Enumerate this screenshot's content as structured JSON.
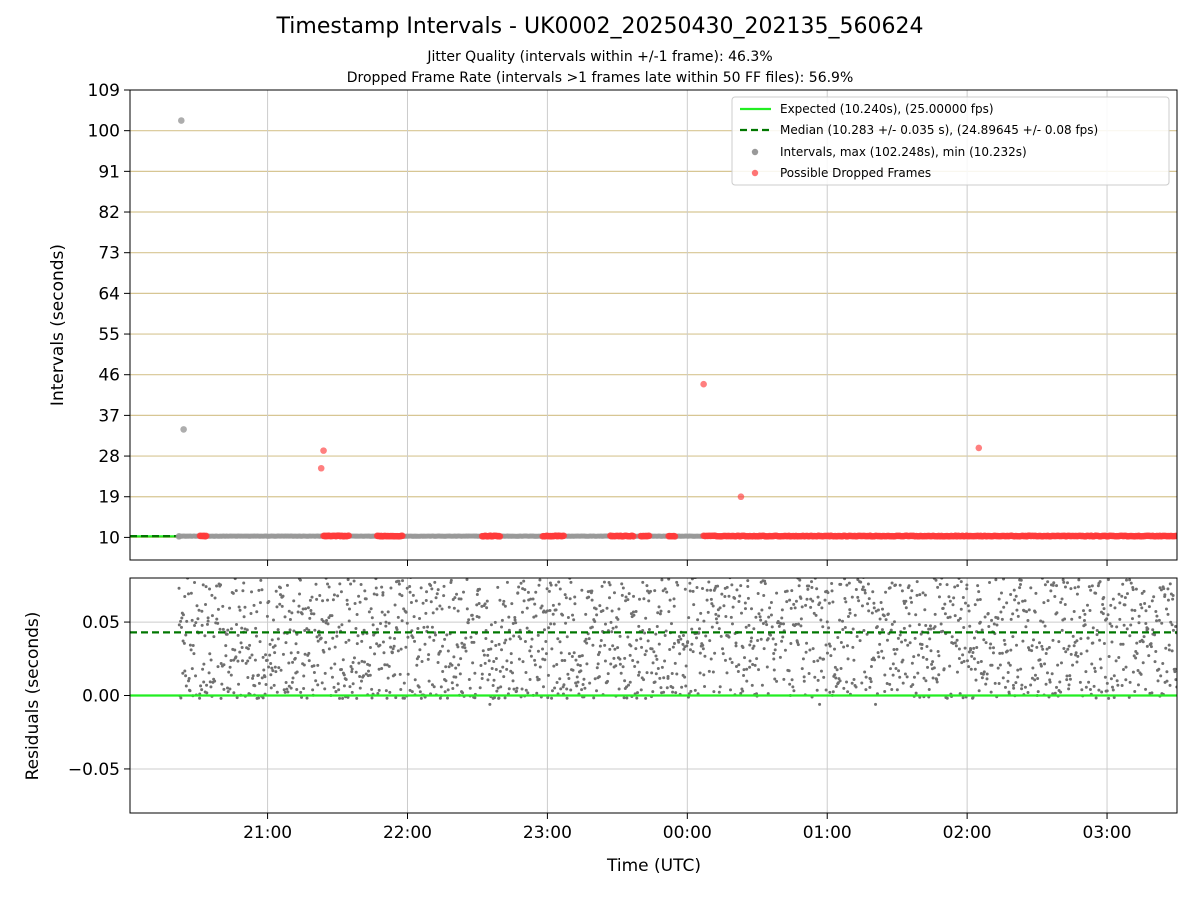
{
  "figure": {
    "title": "Timestamp Intervals - UK0002_20250430_202135_560624",
    "subtitle_1": "Jitter Quality (intervals within +/-1 frame): 46.3%",
    "subtitle_2": "Dropped Frame Rate (intervals >1 frames late within 50 FF files): 56.9%"
  },
  "colors": {
    "expected": "#22ee22",
    "median": "#007700",
    "intervals": "#999999",
    "dropped": "#ff3b3b",
    "residual_points": "#707070",
    "gridline_horizontal": "#d7c693",
    "gridline_vertical": "#cccccc"
  },
  "chart_data": [
    {
      "type": "scatter",
      "panel": "intervals",
      "ylabel": "Intervals (seconds)",
      "ylim": [
        5,
        109
      ],
      "yticks": [
        10,
        19,
        28,
        37,
        46,
        55,
        64,
        73,
        82,
        91,
        100,
        109
      ],
      "xlim": [
        "20:01",
        "03:30"
      ],
      "xticks": [
        "21:00",
        "22:00",
        "23:00",
        "00:00",
        "01:00",
        "02:00",
        "03:00"
      ],
      "legend_position": "top-right",
      "series": [
        {
          "name": "Expected (10.240s), (25.00000 fps)",
          "kind": "line",
          "style": "solid",
          "y": 10.24
        },
        {
          "name": "Median (10.283 +/- 0.035 s), (24.89645 +/- 0.08 fps)",
          "kind": "line",
          "style": "dashed",
          "y": 10.283
        },
        {
          "name": "Intervals, max (102.248s), min (10.232s)",
          "kind": "scatter",
          "points": [
            {
              "x": "20:23",
              "y": 102.248
            },
            {
              "x": "20:24",
              "y": 33.9
            },
            {
              "x": "20:22",
              "y": 10.232
            }
          ]
        },
        {
          "name": "Possible Dropped Frames",
          "kind": "scatter",
          "points": [
            {
              "x": "21:24",
              "y": 29.2
            },
            {
              "x": "21:23",
              "y": 25.3
            },
            {
              "x": "00:07",
              "y": 43.9
            },
            {
              "x": "00:23",
              "y": 19.0
            },
            {
              "x": "02:05",
              "y": 29.8
            }
          ],
          "baseline_value": 10.3,
          "baseline_clusters": [
            [
              "20:31",
              "20:34"
            ],
            [
              "21:24",
              "21:35"
            ],
            [
              "21:47",
              "21:58"
            ],
            [
              "22:32",
              "22:40"
            ],
            [
              "22:58",
              "23:07"
            ],
            [
              "23:27",
              "23:37"
            ],
            [
              "23:40",
              "23:44"
            ],
            [
              "23:52",
              "23:55"
            ],
            [
              "00:07",
              "03:30"
            ]
          ]
        }
      ]
    },
    {
      "type": "scatter",
      "panel": "residuals",
      "ylabel": "Residuals (seconds)",
      "xlabel": "Time (UTC)",
      "ylim": [
        -0.08,
        0.08
      ],
      "yticks": [
        -0.05,
        0.0,
        0.05
      ],
      "ytick_labels": [
        "−0.05",
        "0.00",
        "0.05"
      ],
      "xlim": [
        "20:01",
        "03:30"
      ],
      "xticks": [
        "21:00",
        "22:00",
        "23:00",
        "00:00",
        "01:00",
        "02:00",
        "03:00"
      ],
      "series": [
        {
          "kind": "line",
          "style": "solid",
          "y": 0.0
        },
        {
          "kind": "line",
          "style": "dashed",
          "y": 0.043
        },
        {
          "kind": "scatter",
          "x_range": [
            "20:22",
            "03:30"
          ],
          "y_range": [
            -0.008,
            0.08
          ],
          "note_points": "dense scatter of residual values, approximately 0.00 to above 0.08"
        }
      ]
    }
  ]
}
